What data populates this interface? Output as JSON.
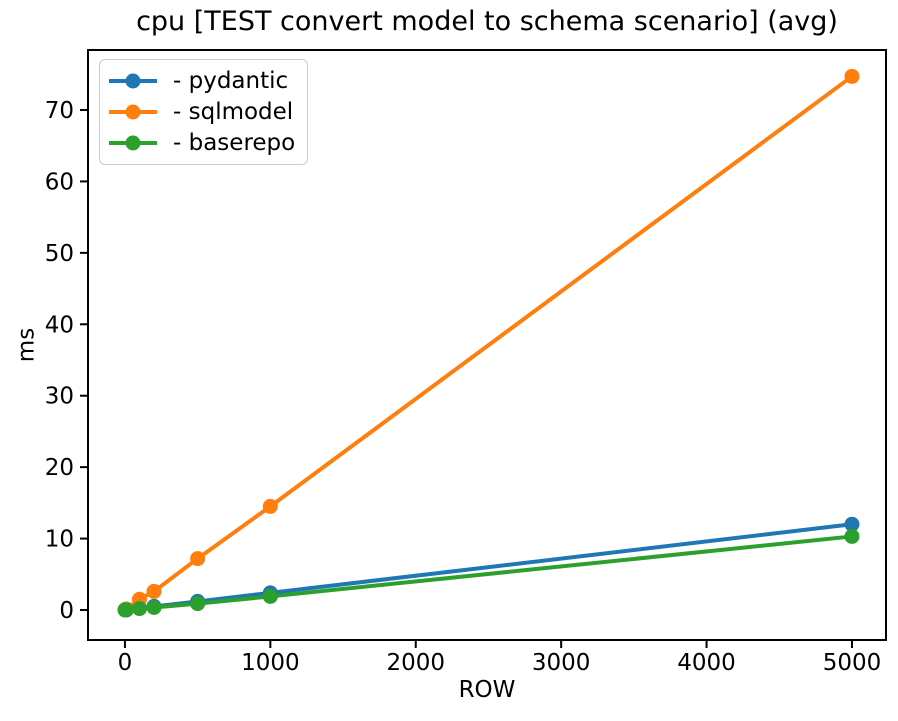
{
  "chart_data": {
    "type": "line",
    "title": "cpu [TEST convert model to schema scenario] (avg)",
    "xlabel": "ROW",
    "ylabel": "ms",
    "x": [
      1,
      10,
      100,
      200,
      500,
      1000,
      5000
    ],
    "series": [
      {
        "name": "pydantic",
        "label": "- pydantic",
        "color": "#1f77b4",
        "values": [
          0.01,
          0.03,
          0.25,
          0.5,
          1.2,
          2.4,
          12.0
        ]
      },
      {
        "name": "sqlmodel",
        "label": "- sqlmodel",
        "color": "#ff7f0e",
        "values": [
          0.02,
          0.15,
          1.5,
          2.6,
          7.2,
          14.5,
          74.7
        ]
      },
      {
        "name": "baserepo",
        "label": "- baserepo",
        "color": "#2ca02c",
        "values": [
          0.01,
          0.02,
          0.2,
          0.35,
          0.9,
          1.9,
          10.3
        ]
      }
    ],
    "xticks": [
      0,
      1000,
      2000,
      3000,
      4000,
      5000
    ],
    "yticks": [
      0,
      10,
      20,
      30,
      40,
      50,
      60,
      70
    ],
    "xlim": [
      -254,
      5234
    ],
    "ylim": [
      -4.2,
      78.4
    ],
    "grid": false,
    "legend_position": "upper-left",
    "marker": "circle",
    "axis_color": "#000000",
    "background_color": "#ffffff"
  }
}
